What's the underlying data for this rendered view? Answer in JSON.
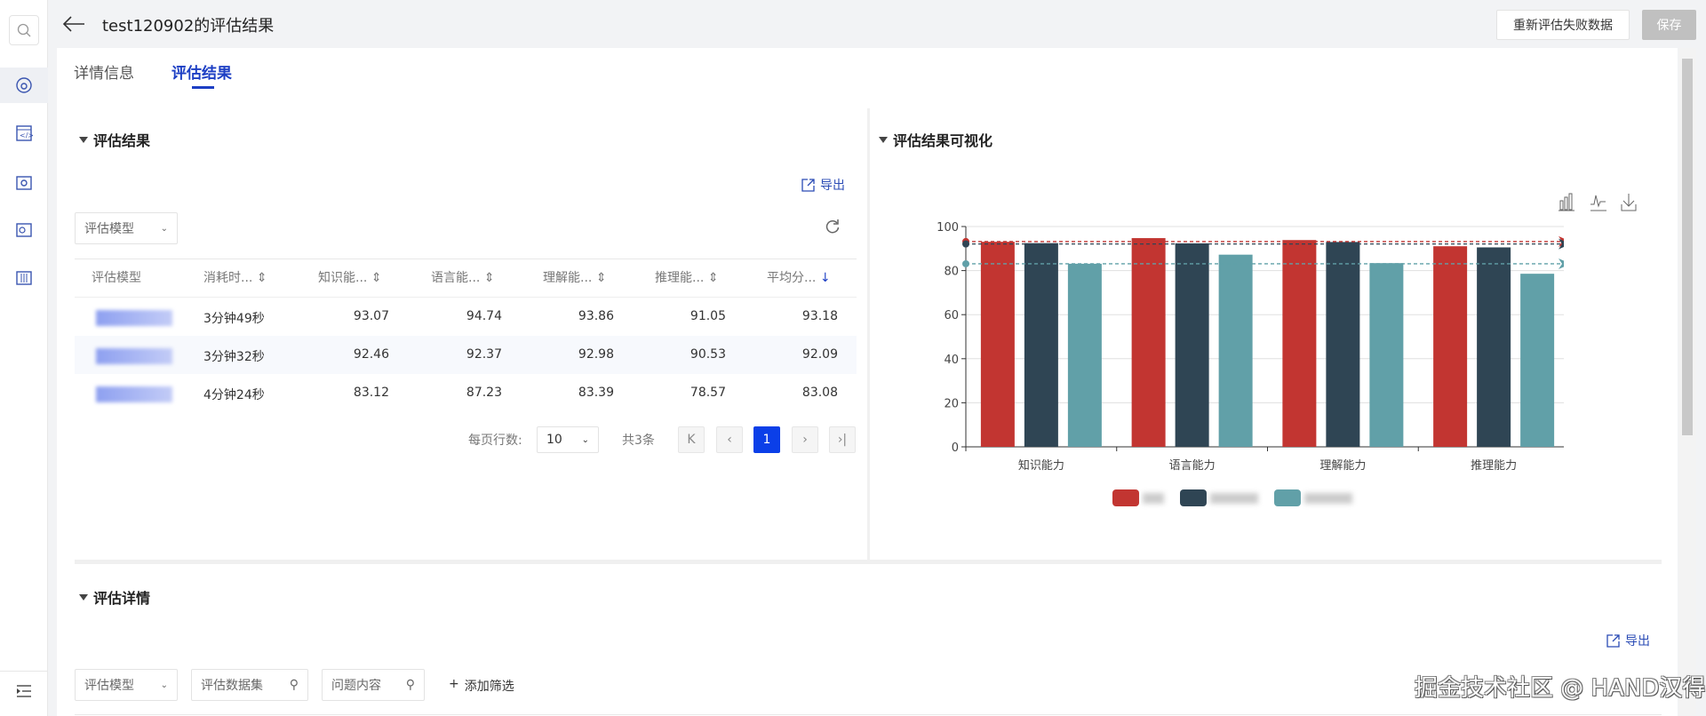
{
  "header": {
    "title": "test120902的评估结果",
    "reevaluate_label": "重新评估失败数据",
    "save_label": "保存"
  },
  "tabs": [
    {
      "label": "详情信息",
      "active": false
    },
    {
      "label": "评估结果",
      "active": true
    }
  ],
  "results": {
    "title": "评估结果",
    "export_label": "导出",
    "model_filter": "评估模型",
    "columns": [
      "评估模型",
      "消耗时...",
      "知识能...",
      "语言能...",
      "理解能...",
      "推理能...",
      "平均分..."
    ],
    "rows": [
      {
        "time": "3分钟49秒",
        "knowledge": "93.07",
        "language": "94.74",
        "comprehension": "93.86",
        "reasoning": "91.05",
        "average": "93.18"
      },
      {
        "time": "3分钟32秒",
        "knowledge": "92.46",
        "language": "92.37",
        "comprehension": "92.98",
        "reasoning": "90.53",
        "average": "92.09"
      },
      {
        "time": "4分钟24秒",
        "knowledge": "83.12",
        "language": "87.23",
        "comprehension": "83.39",
        "reasoning": "78.57",
        "average": "83.08"
      }
    ],
    "pagination": {
      "rows_per_page_label": "每页行数:",
      "rows_per_page": "10",
      "total": "共3条",
      "current_page": "1"
    }
  },
  "visual": {
    "title": "评估结果可视化"
  },
  "chart_data": {
    "type": "bar",
    "categories": [
      "知识能力",
      "语言能力",
      "理解能力",
      "推理能力"
    ],
    "ylim": [
      0,
      100
    ],
    "yticks": [
      0,
      20,
      40,
      60,
      80,
      100
    ],
    "grid": true,
    "legend": "bottom",
    "series": [
      {
        "values": [
          93.07,
          94.74,
          93.86,
          91.05
        ],
        "color": "#c23531",
        "average": 93.18
      },
      {
        "values": [
          92.46,
          92.37,
          92.98,
          90.53
        ],
        "color": "#2f4554",
        "average": 92.09
      },
      {
        "values": [
          83.12,
          87.23,
          83.39,
          78.57
        ],
        "color": "#61a0a8",
        "average": 83.08
      }
    ],
    "average_labels": [
      "93.18",
      "92.09",
      "83.08"
    ]
  },
  "details": {
    "title": "评估详情",
    "export_label": "导出",
    "model_filter": "评估模型",
    "dataset_placeholder": "评估数据集",
    "question_placeholder": "问题内容",
    "add_filter_label": "添加筛选"
  },
  "watermark": "掘金技术社区 @ HAND汉得",
  "colors": {
    "primary": "#0b3fe8",
    "link": "#2a4bb5"
  }
}
